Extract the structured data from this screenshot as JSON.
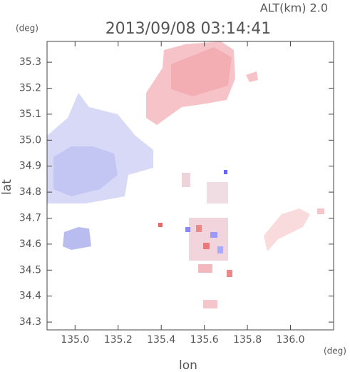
{
  "chart_data": {
    "type": "radar",
    "title": "2013/09/08 03:14:41",
    "subtitle": "ALT(km) 2.0",
    "x_label": "lon",
    "y_label": "lat",
    "x_unit": "(deg)",
    "y_unit": "(deg)",
    "xlim": [
      134.87,
      136.2
    ],
    "xticks": [
      {
        "value": 135,
        "label": "135.0"
      },
      135.2,
      135.4,
      135.6,
      135.8,
      {
        "value": 136,
        "label": "136.0"
      }
    ],
    "ylim": [
      34.27,
      35.38
    ],
    "yticks": [
      34.3,
      34.4,
      34.5,
      34.6,
      34.7,
      34.8,
      34.9,
      {
        "value": 35,
        "label": "35.0"
      },
      35.1,
      35.2,
      35.3
    ]
  }
}
